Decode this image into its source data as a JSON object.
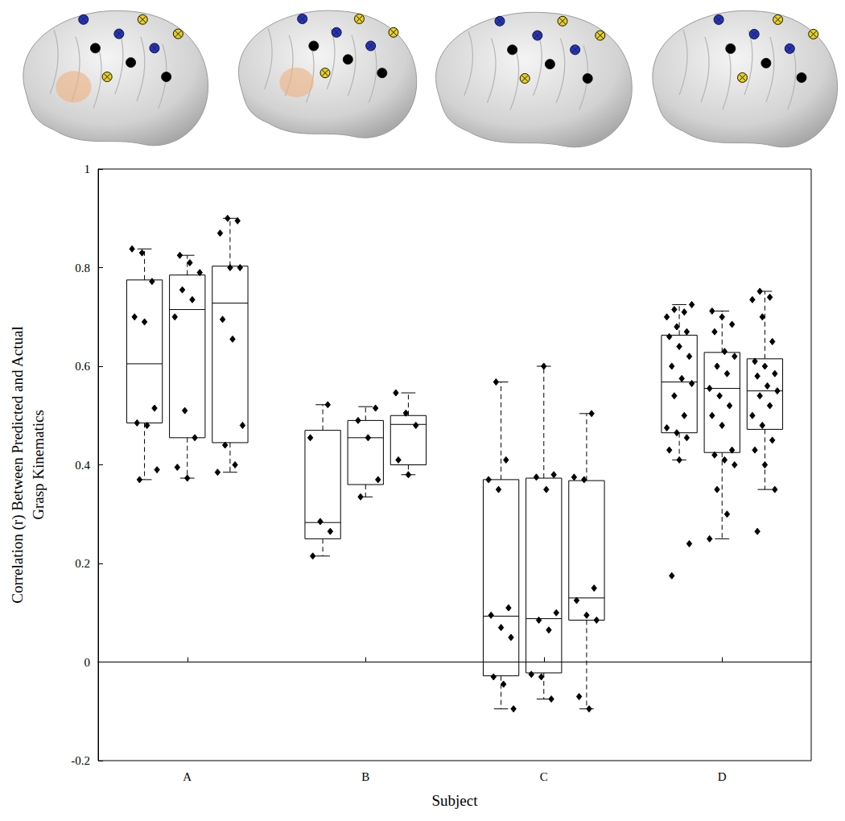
{
  "chart_data": {
    "type": "boxplot",
    "x_label": "Subject",
    "y_label": "Correlation (r) Between Predicted and Actual\nGrasp Kinematics",
    "categories": [
      "A",
      "B",
      "C",
      "D"
    ],
    "groups": [
      [
        {
          "whisker_low": 0.37,
          "q1": 0.485,
          "median": 0.605,
          "q3": 0.775,
          "whisker_high": 0.838,
          "points": [
            0.838,
            0.83,
            0.772,
            0.7,
            0.69,
            0.515,
            0.485,
            0.48,
            0.39,
            0.37
          ]
        },
        {
          "whisker_low": 0.373,
          "q1": 0.455,
          "median": 0.715,
          "q3": 0.785,
          "whisker_high": 0.825,
          "points": [
            0.825,
            0.81,
            0.79,
            0.755,
            0.735,
            0.7,
            0.51,
            0.455,
            0.395,
            0.373
          ]
        },
        {
          "whisker_low": 0.385,
          "q1": 0.445,
          "median": 0.728,
          "q3": 0.803,
          "whisker_high": 0.9,
          "points": [
            0.9,
            0.895,
            0.87,
            0.8,
            0.8,
            0.695,
            0.655,
            0.48,
            0.44,
            0.4,
            0.385
          ]
        }
      ],
      [
        {
          "whisker_low": 0.215,
          "q1": 0.25,
          "median": 0.283,
          "q3": 0.47,
          "whisker_high": 0.522,
          "points": [
            0.522,
            0.455,
            0.285,
            0.265,
            0.215
          ]
        },
        {
          "whisker_low": 0.335,
          "q1": 0.36,
          "median": 0.455,
          "q3": 0.49,
          "whisker_high": 0.518,
          "points": [
            0.515,
            0.49,
            0.455,
            0.37,
            0.335
          ]
        },
        {
          "whisker_low": 0.38,
          "q1": 0.4,
          "median": 0.482,
          "q3": 0.5,
          "whisker_high": 0.546,
          "points": [
            0.546,
            0.505,
            0.48,
            0.41,
            0.38
          ]
        }
      ],
      [
        {
          "whisker_low": -0.095,
          "q1": -0.028,
          "median": 0.093,
          "q3": 0.37,
          "whisker_high": 0.568,
          "points": [
            0.568,
            0.41,
            0.37,
            0.35,
            0.11,
            0.095,
            0.07,
            0.05,
            -0.03,
            -0.045,
            -0.095
          ]
        },
        {
          "whisker_low": -0.075,
          "q1": -0.022,
          "median": 0.088,
          "q3": 0.373,
          "whisker_high": 0.6,
          "points": [
            0.6,
            0.38,
            0.375,
            0.35,
            0.1,
            0.085,
            0.065,
            -0.025,
            -0.03,
            -0.075
          ]
        },
        {
          "whisker_low": -0.095,
          "q1": 0.085,
          "median": 0.13,
          "q3": 0.368,
          "whisker_high": 0.504,
          "points": [
            0.504,
            0.375,
            0.37,
            0.15,
            0.125,
            0.095,
            0.085,
            -0.07,
            -0.095
          ]
        }
      ],
      [
        {
          "whisker_low": 0.41,
          "q1": 0.465,
          "median": 0.568,
          "q3": 0.663,
          "whisker_high": 0.725,
          "points": [
            0.725,
            0.715,
            0.71,
            0.7,
            0.68,
            0.67,
            0.66,
            0.64,
            0.62,
            0.6,
            0.575,
            0.565,
            0.54,
            0.5,
            0.475,
            0.465,
            0.455,
            0.43,
            0.41,
            0.24,
            0.175
          ]
        },
        {
          "whisker_low": 0.25,
          "q1": 0.425,
          "median": 0.555,
          "q3": 0.628,
          "whisker_high": 0.712,
          "points": [
            0.712,
            0.7,
            0.685,
            0.67,
            0.63,
            0.62,
            0.6,
            0.585,
            0.555,
            0.54,
            0.52,
            0.5,
            0.48,
            0.43,
            0.42,
            0.41,
            0.4,
            0.35,
            0.3,
            0.25
          ]
        },
        {
          "whisker_low": 0.35,
          "q1": 0.472,
          "median": 0.55,
          "q3": 0.615,
          "whisker_high": 0.752,
          "points": [
            0.752,
            0.74,
            0.735,
            0.7,
            0.65,
            0.61,
            0.6,
            0.585,
            0.58,
            0.56,
            0.55,
            0.54,
            0.52,
            0.5,
            0.48,
            0.45,
            0.43,
            0.4,
            0.35,
            0.265
          ]
        }
      ]
    ],
    "ylim": [
      -0.2,
      1
    ],
    "yticks": [
      -0.2,
      0,
      0.2,
      0.4,
      0.6,
      0.8,
      1
    ],
    "grid": false,
    "marker": "diamond",
    "color": "#000000"
  }
}
